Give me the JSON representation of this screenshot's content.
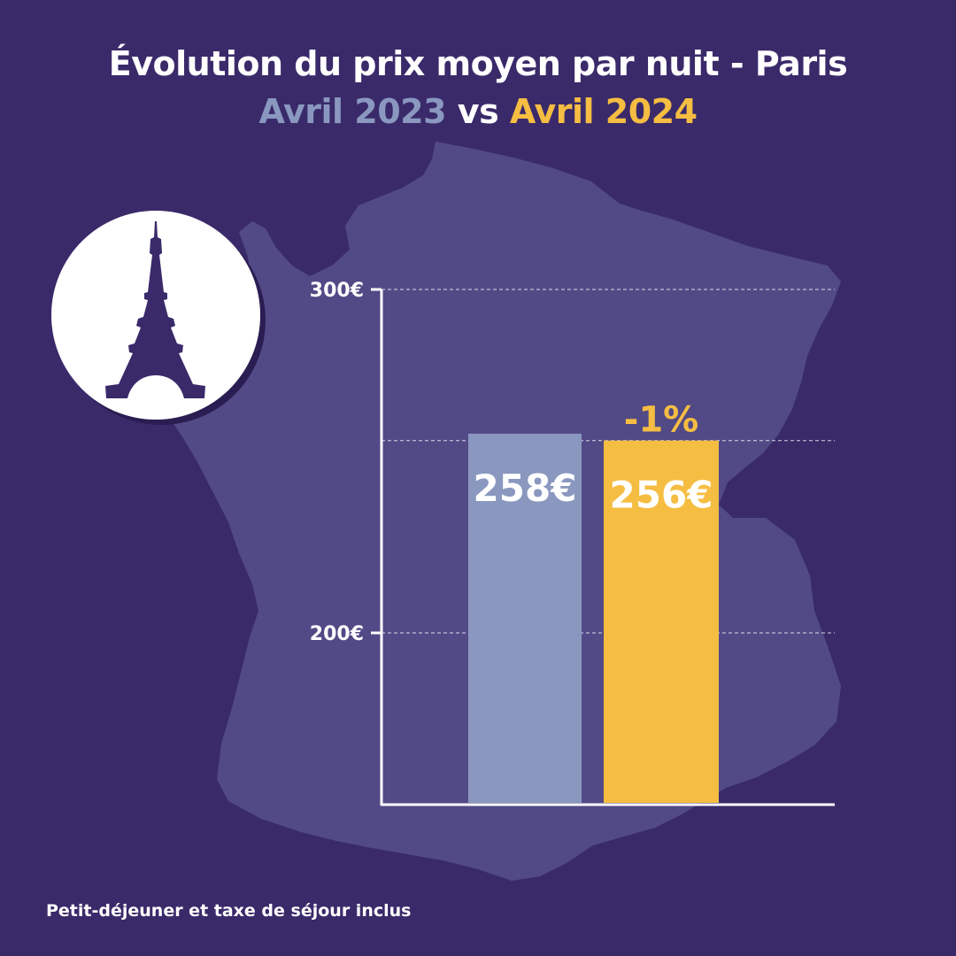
{
  "header": {
    "title": "Évolution du prix moyen par nuit - Paris",
    "period_1": "Avril 2023",
    "vs": "vs",
    "period_2": "Avril 2024"
  },
  "footnote": "Petit-déjeuner et taxe de séjour inclus",
  "colors": {
    "background": "#3a2a6a",
    "map": "#524a86",
    "bar_2023": "#8a98c0",
    "bar_2024": "#f5bd42",
    "text": "#ffffff",
    "icon": "#3a2a6a"
  },
  "icons": {
    "badge": "eiffel-tower-icon",
    "background": "france-map"
  },
  "chart_data": {
    "type": "bar",
    "categories": [
      "Avril 2023",
      "Avril 2024"
    ],
    "values": [
      258,
      256
    ],
    "value_labels": [
      "258€",
      "256€"
    ],
    "change_label": "-1%",
    "y_ticks": [
      200,
      300
    ],
    "y_tick_labels": [
      "200€",
      "300€"
    ],
    "ylim": [
      150,
      300
    ],
    "grid": true,
    "grid_values": [
      200,
      256,
      300
    ],
    "title": "Évolution du prix moyen par nuit - Paris",
    "xlabel": "",
    "ylabel": ""
  }
}
